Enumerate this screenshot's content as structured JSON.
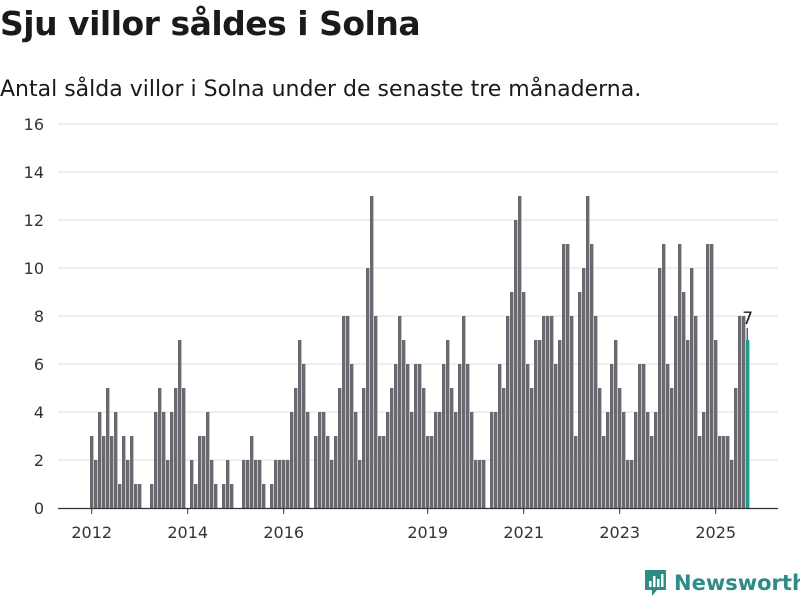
{
  "title": "Sju villor såldes i Solna",
  "subtitle": "Antal sålda villor i Solna under de senaste tre månaderna.",
  "brand": "Newsworthy",
  "colors": {
    "bar": "#6b6870",
    "highlight": "#1f9a8e",
    "grid": "#dcdcdc",
    "brand": "#2e8b86"
  },
  "chart_data": {
    "type": "bar",
    "ylim": [
      0,
      16
    ],
    "yticks": [
      "0",
      "2",
      "4",
      "6",
      "8",
      "10",
      "12",
      "14",
      "16"
    ],
    "xticks": [
      {
        "label": "2012",
        "index": 0
      },
      {
        "label": "2014",
        "index": 24
      },
      {
        "label": "2016",
        "index": 48
      },
      {
        "label": "2019",
        "index": 84
      },
      {
        "label": "2021",
        "index": 108
      },
      {
        "label": "2023",
        "index": 132
      },
      {
        "label": "2025",
        "index": 156
      }
    ],
    "values": [
      3,
      2,
      4,
      3,
      5,
      3,
      4,
      1,
      3,
      2,
      3,
      1,
      1,
      0,
      0,
      1,
      4,
      5,
      4,
      2,
      4,
      5,
      7,
      5,
      0,
      2,
      1,
      3,
      3,
      4,
      2,
      1,
      0,
      1,
      2,
      1,
      0,
      0,
      2,
      2,
      3,
      2,
      2,
      1,
      0,
      1,
      2,
      2,
      2,
      2,
      4,
      5,
      7,
      6,
      4,
      0,
      3,
      4,
      4,
      3,
      2,
      3,
      5,
      8,
      8,
      6,
      4,
      2,
      5,
      10,
      13,
      8,
      3,
      3,
      4,
      5,
      6,
      8,
      7,
      6,
      4,
      6,
      6,
      5,
      3,
      3,
      4,
      4,
      6,
      7,
      5,
      4,
      6,
      8,
      6,
      4,
      2,
      2,
      2,
      0,
      4,
      4,
      6,
      5,
      8,
      9,
      12,
      13,
      9,
      6,
      5,
      7,
      7,
      8,
      8,
      8,
      6,
      7,
      11,
      11,
      8,
      3,
      9,
      10,
      13,
      11,
      8,
      5,
      3,
      4,
      6,
      7,
      5,
      4,
      2,
      2,
      4,
      6,
      6,
      4,
      3,
      4,
      10,
      11,
      6,
      5,
      8,
      11,
      9,
      7,
      10,
      8,
      3,
      4,
      11,
      11,
      7,
      3,
      3,
      3,
      2,
      5,
      8,
      8,
      7
    ],
    "highlight_index": 164,
    "highlight_label": "7"
  }
}
